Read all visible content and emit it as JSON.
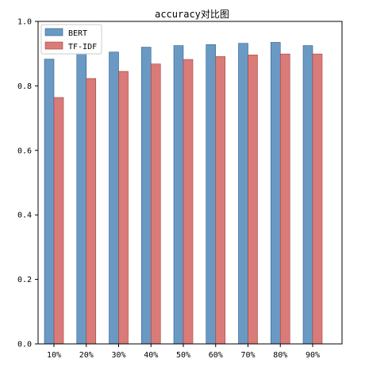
{
  "chart_data": {
    "type": "bar",
    "title": "accuracy对比图",
    "categories": [
      "10%",
      "20%",
      "30%",
      "40%",
      "50%",
      "60%",
      "70%",
      "80%",
      "90%"
    ],
    "series": [
      {
        "name": "BERT",
        "values": [
          0.883,
          0.899,
          0.905,
          0.92,
          0.925,
          0.928,
          0.932,
          0.935,
          0.925
        ],
        "color": "#6a9ac4"
      },
      {
        "name": "TF-IDF",
        "values": [
          0.764,
          0.823,
          0.845,
          0.868,
          0.882,
          0.891,
          0.896,
          0.899,
          0.899
        ],
        "color": "#d97b79"
      }
    ],
    "xlabel": "",
    "ylabel": "",
    "ylim": [
      0,
      1.0
    ],
    "yticks": [
      "0.0",
      "0.2",
      "0.4",
      "0.6",
      "0.8",
      "1.0"
    ],
    "grid": false,
    "legend_position": "top-left"
  }
}
